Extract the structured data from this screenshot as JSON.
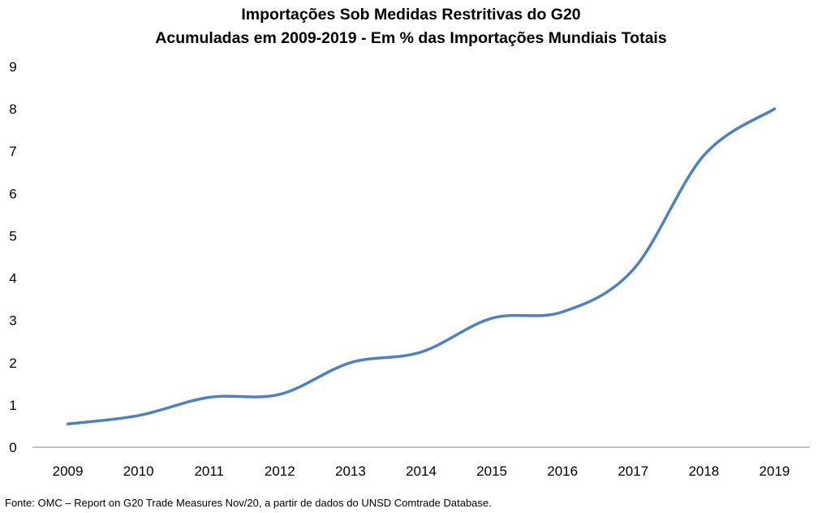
{
  "chart_data": {
    "type": "line",
    "title": "Importações  Sob Medidas Restritivas do G20",
    "subtitle": "Acumuladas em 2009-2019 - Em % das Importações Mundiais Totais",
    "xlabel": "",
    "ylabel": "",
    "x": [
      "2009",
      "2010",
      "2011",
      "2012",
      "2013",
      "2014",
      "2015",
      "2016",
      "2017",
      "2018",
      "2019"
    ],
    "series": [
      {
        "values": [
          0.55,
          0.75,
          1.18,
          1.25,
          2.0,
          2.25,
          3.05,
          3.2,
          4.2,
          6.9,
          8.0
        ]
      }
    ],
    "yticks": [
      "0",
      "1",
      "2",
      "3",
      "4",
      "5",
      "6",
      "7",
      "8",
      "9"
    ],
    "ylim": [
      0,
      9
    ],
    "grid": false,
    "legend": "none",
    "line_color": "#4f81bd"
  },
  "source_note": "Fonte: OMC – Report on G20 Trade Measures Nov/20, a partir de dados do UNSD Comtrade Database."
}
